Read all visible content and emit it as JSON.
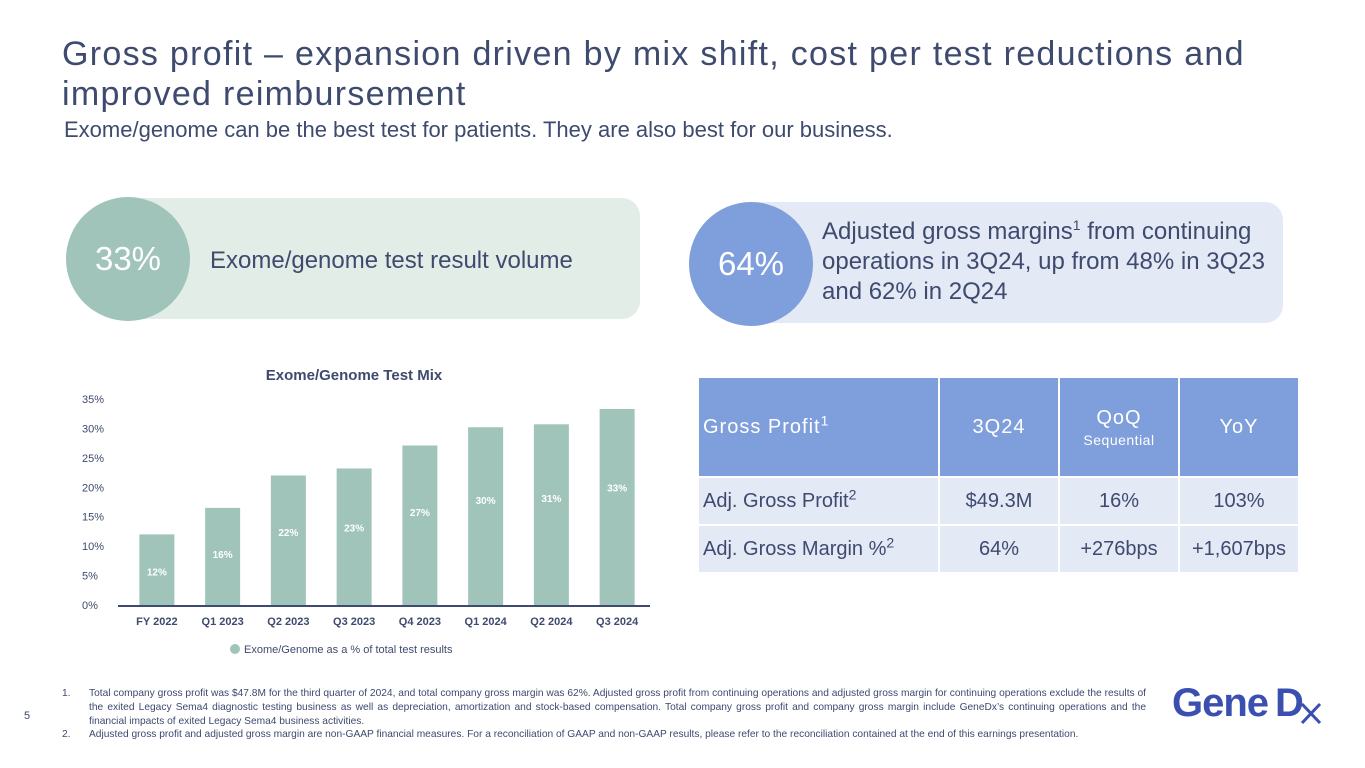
{
  "slide": {
    "title": "Gross profit – expansion driven by mix shift, cost per test reductions and improved reimbursement",
    "subtitle": "Exome/genome can be the best test for patients. They are also best for our business.",
    "page_number": "5"
  },
  "callout_left": {
    "value": "33%",
    "text": "Exome/genome test result volume",
    "color": "#a0c4b9"
  },
  "callout_right": {
    "value": "64%",
    "text_a": "Adjusted gross margins",
    "sup": "1",
    "text_b": " from continuing operations in 3Q24, up from 48% in 3Q23 and 62% in 2Q24",
    "color": "#7f9edc"
  },
  "chart_data": {
    "type": "bar",
    "title": "Exome/Genome Test Mix",
    "categories": [
      "FY 2022",
      "Q1 2023",
      "Q2 2023",
      "Q3 2023",
      "Q4 2023",
      "Q1 2024",
      "Q2 2024",
      "Q3 2024"
    ],
    "series": [
      {
        "name": "Exome/Genome as a % of total test results",
        "values": [
          12,
          16.5,
          22,
          23.2,
          27.1,
          30.2,
          30.7,
          33.3
        ],
        "labels": [
          "12%",
          "16%",
          "22%",
          "23%",
          "27%",
          "30%",
          "31%",
          "33%"
        ],
        "color": "#a0c4b9"
      }
    ],
    "ylim": [
      0,
      35
    ],
    "yticks": [
      "0%",
      "5%",
      "10%",
      "15%",
      "20%",
      "25%",
      "30%",
      "35%"
    ],
    "ytick_values": [
      0,
      5,
      10,
      15,
      20,
      25,
      30,
      35
    ],
    "grid": false,
    "legend": "bottom"
  },
  "table": {
    "headers": [
      {
        "label": "Gross Profit",
        "sup": "1"
      },
      {
        "label": "3Q24"
      },
      {
        "label": "QoQ",
        "sub": "Sequential"
      },
      {
        "label": "YoY"
      }
    ],
    "rows": [
      {
        "label": "Adj. Gross Profit",
        "sup": "2",
        "cells": [
          "$49.3M",
          "16%",
          "103%"
        ]
      },
      {
        "label": "Adj. Gross Margin %",
        "sup": "2",
        "cells": [
          "64%",
          "+276bps",
          "+1,607bps"
        ]
      }
    ]
  },
  "footnotes": [
    {
      "num": "1.",
      "text": "Total company gross profit was $47.8M for the third quarter of 2024, and total company gross margin was 62%. Adjusted gross profit from continuing operations and adjusted gross margin for continuing operations exclude the results of the exited Legacy Sema4 diagnostic testing business as well as depreciation, amortization and stock-based compensation. Total company gross profit and company gross margin include GeneDx’s continuing operations and the financial impacts of exited Legacy Sema4 business activities."
    },
    {
      "num": "2.",
      "text": "Adjusted gross profit and adjusted gross margin are non-GAAP financial measures. For a reconciliation of GAAP and non-GAAP results, please refer to the reconciliation contained at the end of this earnings presentation."
    }
  ],
  "logo": {
    "text_a": "Gene",
    "text_b": "Dx",
    "color": "#3a4fb0"
  }
}
